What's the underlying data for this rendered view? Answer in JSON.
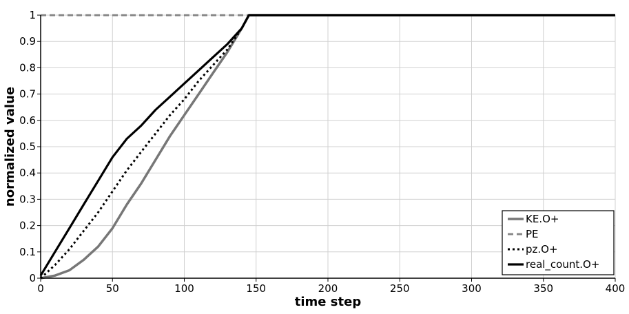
{
  "chart_data": {
    "type": "line",
    "xlabel": "time step",
    "ylabel": "normalized value",
    "xlim": [
      0,
      400
    ],
    "ylim": [
      0,
      1
    ],
    "xticks": [
      0,
      50,
      100,
      150,
      200,
      250,
      300,
      350,
      400
    ],
    "yticks": [
      0,
      0.1,
      0.2,
      0.3,
      0.4,
      0.5,
      0.6,
      0.7,
      0.8,
      0.9,
      1
    ],
    "ytick_labels": [
      "0",
      "0.1",
      "0.2",
      "0.3",
      "0.4",
      "0.5",
      "0.6",
      "0.7",
      "0.8",
      "0.9",
      "1"
    ],
    "grid": true,
    "legend_position": "bottom-right",
    "series": [
      {
        "name": "KE.O+",
        "color": "#777777",
        "style": "solid",
        "x": [
          0,
          10,
          20,
          30,
          40,
          50,
          60,
          70,
          80,
          90,
          100,
          110,
          120,
          130,
          140,
          145,
          150,
          200,
          250,
          300,
          350,
          400
        ],
        "y": [
          0,
          0.01,
          0.03,
          0.07,
          0.12,
          0.19,
          0.28,
          0.36,
          0.45,
          0.54,
          0.62,
          0.7,
          0.78,
          0.86,
          0.95,
          1.0,
          1.0,
          1.0,
          1.0,
          1.0,
          1.0,
          1.0
        ]
      },
      {
        "name": "PE",
        "color": "#888888",
        "style": "dashed",
        "x": [
          0,
          145,
          150,
          200,
          250,
          300,
          350,
          400
        ],
        "y": [
          1.0,
          1.0,
          1.0,
          1.0,
          1.0,
          1.0,
          1.0,
          1.0
        ]
      },
      {
        "name": "pz.O+",
        "color": "#000000",
        "style": "dotted",
        "x": [
          0,
          10,
          20,
          30,
          40,
          50,
          60,
          70,
          80,
          90,
          100,
          110,
          120,
          130,
          140,
          145,
          150,
          200,
          250,
          300,
          350,
          400
        ],
        "y": [
          0,
          0.05,
          0.11,
          0.18,
          0.25,
          0.33,
          0.41,
          0.48,
          0.55,
          0.62,
          0.68,
          0.75,
          0.81,
          0.87,
          0.95,
          1.0,
          1.0,
          1.0,
          1.0,
          1.0,
          1.0,
          1.0
        ]
      },
      {
        "name": "real_count.O+",
        "color": "#000000",
        "style": "solid",
        "x": [
          0,
          10,
          20,
          30,
          40,
          50,
          60,
          70,
          80,
          90,
          100,
          110,
          120,
          130,
          140,
          145,
          150,
          200,
          250,
          300,
          350,
          400
        ],
        "y": [
          0.01,
          0.1,
          0.19,
          0.28,
          0.37,
          0.46,
          0.53,
          0.58,
          0.64,
          0.69,
          0.74,
          0.79,
          0.84,
          0.89,
          0.95,
          1.0,
          1.0,
          1.0,
          1.0,
          1.0,
          1.0,
          1.0
        ]
      }
    ]
  }
}
